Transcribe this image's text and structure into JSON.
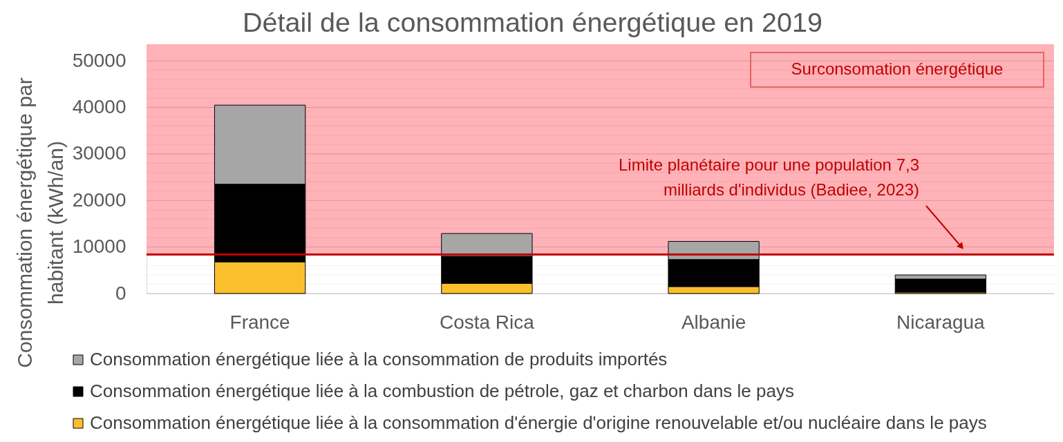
{
  "chart_data": {
    "type": "bar",
    "title": "Détail de la consommation énergétique en 2019",
    "ylabel": "Consommation énergétique  par\nhabitant (kWh/an)",
    "categories": [
      "France",
      "Costa Rica",
      "Albanie",
      "Nicaragua"
    ],
    "stacked": true,
    "series": [
      {
        "name": "Consommation énergétique  liée à la consommation d'énergie d'origine renouvelable et/ou nucléaire dans le pays",
        "color": "#fbbf2d",
        "values": [
          6800,
          2200,
          1500,
          300
        ]
      },
      {
        "name": "Consommation énergétique liée à la combustion de pétrole, gaz et charbon dans le pays",
        "color": "#000000",
        "values": [
          16700,
          5800,
          5800,
          2800
        ]
      },
      {
        "name": "Consommation énergétique liée à la consommation de produits importés",
        "color": "#a6a6a6",
        "values": [
          17000,
          4900,
          3900,
          900
        ]
      }
    ],
    "ylim": [
      0,
      53600
    ],
    "yticks": [
      0,
      {
        "value": 2000,
        "label": null
      },
      {
        "value": 4000,
        "label": null
      },
      {
        "value": 6000,
        "label": null
      },
      {
        "value": 8000,
        "label": null
      },
      10000,
      {
        "value": 12000,
        "label": null
      },
      {
        "value": 14000,
        "label": null
      },
      {
        "value": 16000,
        "label": null
      },
      {
        "value": 18000,
        "label": null
      },
      20000,
      {
        "value": 22000,
        "label": null
      },
      {
        "value": 24000,
        "label": null
      },
      {
        "value": 26000,
        "label": null
      },
      {
        "value": 28000,
        "label": null
      },
      30000,
      {
        "value": 32000,
        "label": null
      },
      {
        "value": 34000,
        "label": null
      },
      {
        "value": 36000,
        "label": null
      },
      {
        "value": 38000,
        "label": null
      },
      40000,
      {
        "value": 42000,
        "label": null
      },
      {
        "value": 44000,
        "label": null
      },
      {
        "value": 46000,
        "label": null
      },
      {
        "value": 48000,
        "label": null
      },
      50000
    ],
    "grid": "y",
    "legend": "bottom",
    "ref_lines": [
      {
        "axis": "y",
        "value": 8400,
        "label": "Limite planétaire pour une population 7,3\nmilliards d'individus (Badiee, 2023)",
        "color": "#c00000"
      }
    ],
    "bands": [
      {
        "axis": "y",
        "from": 8400,
        "to": 53600,
        "label": "Surconsomation énergétique",
        "color": "#ffb2b7"
      }
    ]
  }
}
